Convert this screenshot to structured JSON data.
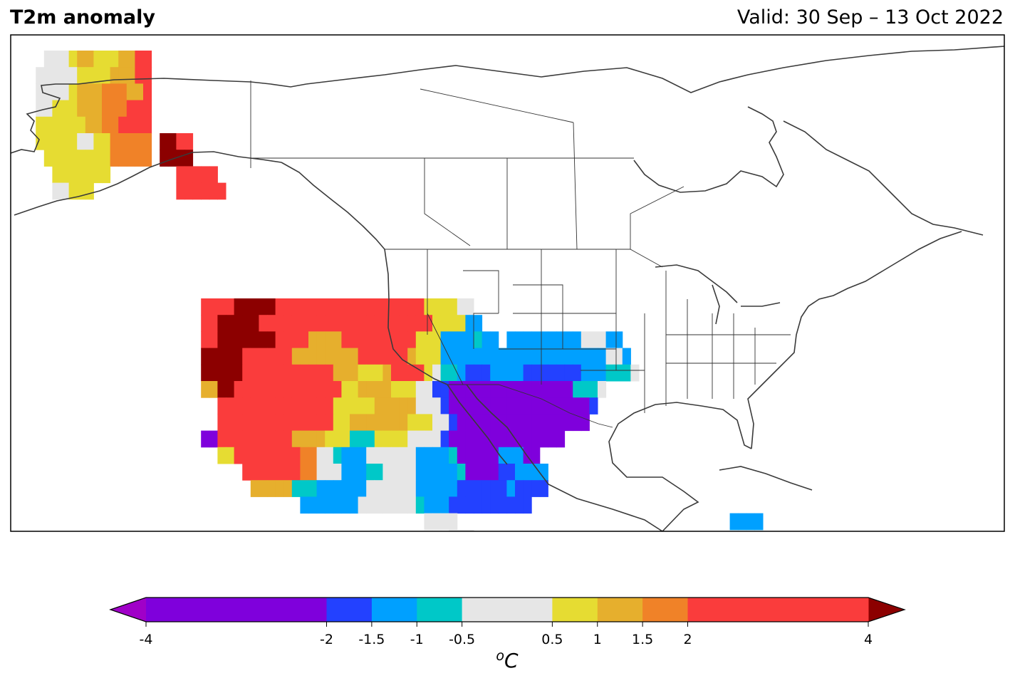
{
  "header": {
    "title": "T2m anomaly",
    "valid": "Valid: 30 Sep – 13 Oct 2022"
  },
  "colorbar": {
    "bounds": [
      -4,
      -2,
      -1.5,
      -1,
      -0.5,
      0.5,
      1,
      1.5,
      2,
      4
    ],
    "tick_labels": [
      "-4",
      "-2",
      "-1.5",
      "-1",
      "-0.5",
      "0.5",
      "1",
      "1.5",
      "2",
      "4"
    ],
    "colors": [
      "#7f00dc",
      "#2341ff",
      "#00a0ff",
      "#00c8c8",
      "#e6e6e6",
      "#e6dc32",
      "#e6af2d",
      "#f08228",
      "#fa3c3c"
    ],
    "under_color": "#a000c8",
    "over_color": "#8c0000",
    "unit": "oC",
    "extend": "both"
  },
  "chart_data": {
    "type": "heatmap",
    "title": "T2m anomaly",
    "subtitle": "Valid: 30 Sep – 13 Oct 2022",
    "unit": "oC",
    "region": "North America",
    "value_classes": {
      "U": "< -4",
      "P": "-4 to -2",
      "B": "-2 to -1.5",
      "L": "-1.5 to -1",
      "C": "-1 to -0.5",
      "G": "-0.5 to 0.5",
      "Y": "0.5 to 1",
      "O": "1 to 1.5",
      "D": "1.5 to 2",
      "R": "2 to 4",
      "M": "> 4"
    },
    "grid_origin": {
      "lon": -170,
      "lat": 71.25
    },
    "grid_spacing_deg": 1.25,
    "rows": [
      "...GGGYOOYYYOORR..................................................................................",
      "..GGGGGYYYYOOORR..................................................................................",
      "..GGGGYOOODDDOOR..................................................................................",
      "..GGYYYOOODDDRRR..................................................................................",
      "..YYYYYYOODDRRRR..................................................................................",
      "..YYYYYGGYYDDDDD.MMRR.............................................................................",
      "...YYYYYYYYDDDDD.MMMM.............................................................................",
      "....YYYYYYY........RRRRR...........................................................................",
      "....GGYYY..........RRRRRR..........................................................................",
      "..................................................................................................",
      "..................................................................................................",
      "..................................................................................................",
      "..................................................................................................",
      "..................................................................................................",
      "..................................................................................................",
      "......................RRRRMMMMMRRRRRRRRRRRRRRRRRRYYYYGG............................................",
      "......................RRMMMMMRRRRRRRRRRRRRRRRRRRRRYYYYLL...........................................",
      "......................RRMMMMMMMRRRROOOORRRRRRRRRYYYLLLLCLL.LLLLLLLLLGGGLL.........................",
      "......................MMMMMRRRRRROOOOOOOORRRRRROYYYLLLLLLLLLLLLLLLLLLLLGGL.........................",
      "......................MMMMMRRRRRRRRRRROOOYYYORRRRYGCCLBBBLLLLBBBBBBBLLLCCCG.......................",
      "......................OOMMRRRRRRRRRRRRRYYOOOOYYYGGBBPPPPPPPPPPPPPPPCCCG............................",
      "........................RRRRRRRRRRRRRRYYYYYOOOOOGGGBPPPPPPPPPPPPPPPPPB.............................",
      "........................RRRRRRRRRRRRRRYYOOOOOOOYYYGGBPPPPPPPPPPPPPPPP..............................",
      "......................PPRRRRRRRRROOOOYYYCCCYYYYGGGGBPPPPPPPPPPPPPP.................................",
      "........................YYRRRRRRRRDDGGCLLLGGGGGGLLLLCPPPPPLLLPP...................................",
      "...........................RRRRRRRDDGGGLLLCCGGGGLLLLLCPPPPBBLLLL...................................",
      "............................OOOOOCCCLLLLLLGGGGGGLLLLLBBBBBBLBBBB...................................",
      "..................................LLLLLLLGGGGGGGCLLLBBBBBBBBBB......................................",
      ".................................................GGGG.................................LLLL..........",
      "....................................................GGG...........................................",
      "..................................................................................................",
      "...................................................................................LLLLCC.........",
      "..................................................................................................",
      "....................................................................................LLCC..........",
      "...................................................................................................."
    ]
  }
}
